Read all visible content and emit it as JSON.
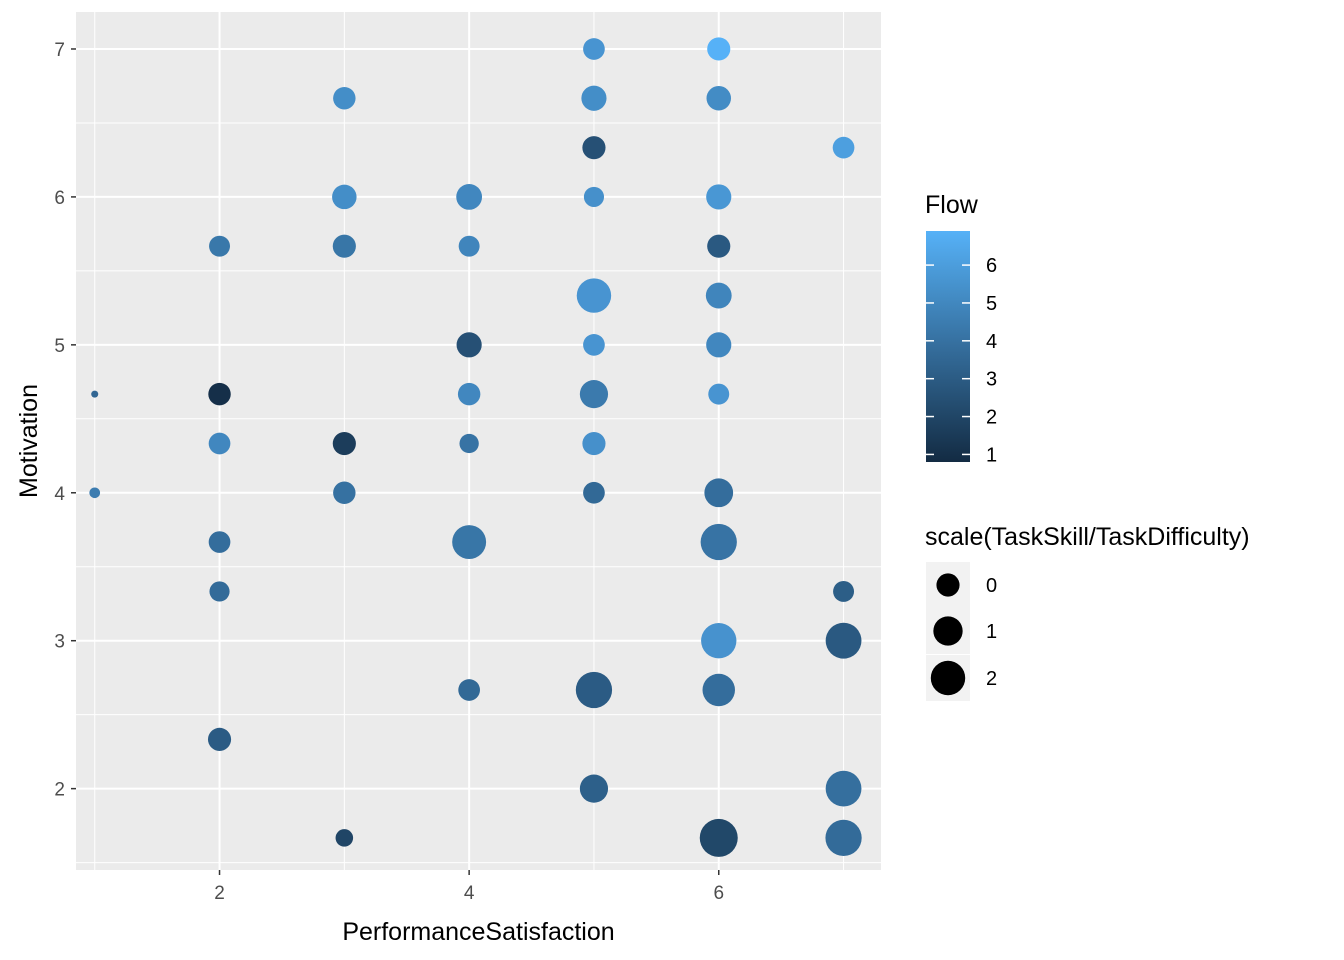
{
  "chart_data": {
    "type": "scatter",
    "title": "",
    "xlabel": "PerformanceSatisfaction",
    "ylabel": "Motivation",
    "xlim": [
      0.85,
      7.3
    ],
    "ylim": [
      1.45,
      7.25
    ],
    "x_ticks": [
      2,
      4,
      6
    ],
    "x_tick_labels": [
      "2",
      "4",
      "6"
    ],
    "y_ticks": [
      2,
      3,
      4,
      5,
      6,
      7
    ],
    "y_tick_labels": [
      "2",
      "3",
      "4",
      "5",
      "6",
      "7"
    ],
    "grid": true,
    "legend_position": "right",
    "color_legend": {
      "title": "Flow",
      "breaks": [
        1,
        2,
        3,
        4,
        5,
        6
      ],
      "labels": [
        "1",
        "2",
        "3",
        "4",
        "5",
        "6"
      ],
      "range": [
        0.8,
        6.9
      ],
      "low_color": "#132B43",
      "high_color": "#56B1F7"
    },
    "size_legend": {
      "title": "scale(TaskSkill/TaskDifficulty)",
      "breaks": [
        0,
        1,
        2
      ],
      "labels": [
        "0",
        "1",
        "2"
      ]
    },
    "points": [
      {
        "x": 1,
        "y": 4.667,
        "size": -1.5,
        "color": 3.5
      },
      {
        "x": 1,
        "y": 4.0,
        "size": -1.3,
        "color": 4.5
      },
      {
        "x": 2,
        "y": 5.667,
        "size": -0.3,
        "color": 4.3
      },
      {
        "x": 2,
        "y": 4.667,
        "size": -0.1,
        "color": 1.0
      },
      {
        "x": 2,
        "y": 4.333,
        "size": -0.2,
        "color": 5.0
      },
      {
        "x": 2,
        "y": 3.667,
        "size": -0.2,
        "color": 3.8
      },
      {
        "x": 2,
        "y": 3.333,
        "size": -0.4,
        "color": 3.7
      },
      {
        "x": 2,
        "y": 2.333,
        "size": 0.0,
        "color": 3.0
      },
      {
        "x": 3,
        "y": 6.667,
        "size": -0.1,
        "color": 5.3
      },
      {
        "x": 3,
        "y": 6.0,
        "size": 0.2,
        "color": 5.3
      },
      {
        "x": 3,
        "y": 5.667,
        "size": 0.0,
        "color": 4.2
      },
      {
        "x": 3,
        "y": 4.333,
        "size": 0.0,
        "color": 1.6
      },
      {
        "x": 3,
        "y": 4.0,
        "size": -0.1,
        "color": 4.0
      },
      {
        "x": 3,
        "y": 1.667,
        "size": -0.7,
        "color": 2.0
      },
      {
        "x": 4,
        "y": 6.0,
        "size": 0.4,
        "color": 5.0
      },
      {
        "x": 4,
        "y": 5.667,
        "size": -0.3,
        "color": 4.9
      },
      {
        "x": 4,
        "y": 5.0,
        "size": 0.3,
        "color": 2.5
      },
      {
        "x": 4,
        "y": 4.667,
        "size": -0.1,
        "color": 5.0
      },
      {
        "x": 4,
        "y": 4.333,
        "size": -0.5,
        "color": 4.1
      },
      {
        "x": 4,
        "y": 3.667,
        "size": 1.9,
        "color": 4.2
      },
      {
        "x": 4,
        "y": 2.667,
        "size": -0.2,
        "color": 3.6
      },
      {
        "x": 5,
        "y": 7.0,
        "size": -0.2,
        "color": 5.6
      },
      {
        "x": 5,
        "y": 6.667,
        "size": 0.3,
        "color": 5.3
      },
      {
        "x": 5,
        "y": 6.333,
        "size": 0.0,
        "color": 2.5
      },
      {
        "x": 5,
        "y": 6.0,
        "size": -0.4,
        "color": 5.4
      },
      {
        "x": 5,
        "y": 5.333,
        "size": 2.0,
        "color": 5.6
      },
      {
        "x": 5,
        "y": 5.0,
        "size": -0.2,
        "color": 5.6
      },
      {
        "x": 5,
        "y": 4.667,
        "size": 0.8,
        "color": 4.4
      },
      {
        "x": 5,
        "y": 4.333,
        "size": 0.0,
        "color": 5.4
      },
      {
        "x": 5,
        "y": 4.0,
        "size": -0.2,
        "color": 3.6
      },
      {
        "x": 5,
        "y": 2.667,
        "size": 2.4,
        "color": 3.0
      },
      {
        "x": 5,
        "y": 2.0,
        "size": 0.8,
        "color": 3.2
      },
      {
        "x": 6,
        "y": 7.0,
        "size": 0.0,
        "color": 6.9
      },
      {
        "x": 6,
        "y": 6.667,
        "size": 0.2,
        "color": 5.2
      },
      {
        "x": 6,
        "y": 6.0,
        "size": 0.3,
        "color": 5.7
      },
      {
        "x": 6,
        "y": 5.667,
        "size": 0.0,
        "color": 2.9
      },
      {
        "x": 6,
        "y": 5.333,
        "size": 0.4,
        "color": 4.9
      },
      {
        "x": 6,
        "y": 5.0,
        "size": 0.3,
        "color": 5.0
      },
      {
        "x": 6,
        "y": 4.667,
        "size": -0.3,
        "color": 5.6
      },
      {
        "x": 6,
        "y": 4.0,
        "size": 0.9,
        "color": 3.8
      },
      {
        "x": 6,
        "y": 3.667,
        "size": 2.4,
        "color": 4.1
      },
      {
        "x": 6,
        "y": 3.0,
        "size": 2.2,
        "color": 5.5
      },
      {
        "x": 6,
        "y": 2.667,
        "size": 1.6,
        "color": 3.8
      },
      {
        "x": 6,
        "y": 1.667,
        "size": 2.8,
        "color": 2.1
      },
      {
        "x": 7,
        "y": 6.333,
        "size": -0.2,
        "color": 6.1
      },
      {
        "x": 7,
        "y": 3.333,
        "size": -0.3,
        "color": 3.1
      },
      {
        "x": 7,
        "y": 3.0,
        "size": 2.3,
        "color": 2.9
      },
      {
        "x": 7,
        "y": 2.0,
        "size": 2.3,
        "color": 3.9
      },
      {
        "x": 7,
        "y": 1.667,
        "size": 2.4,
        "color": 3.7
      }
    ]
  }
}
